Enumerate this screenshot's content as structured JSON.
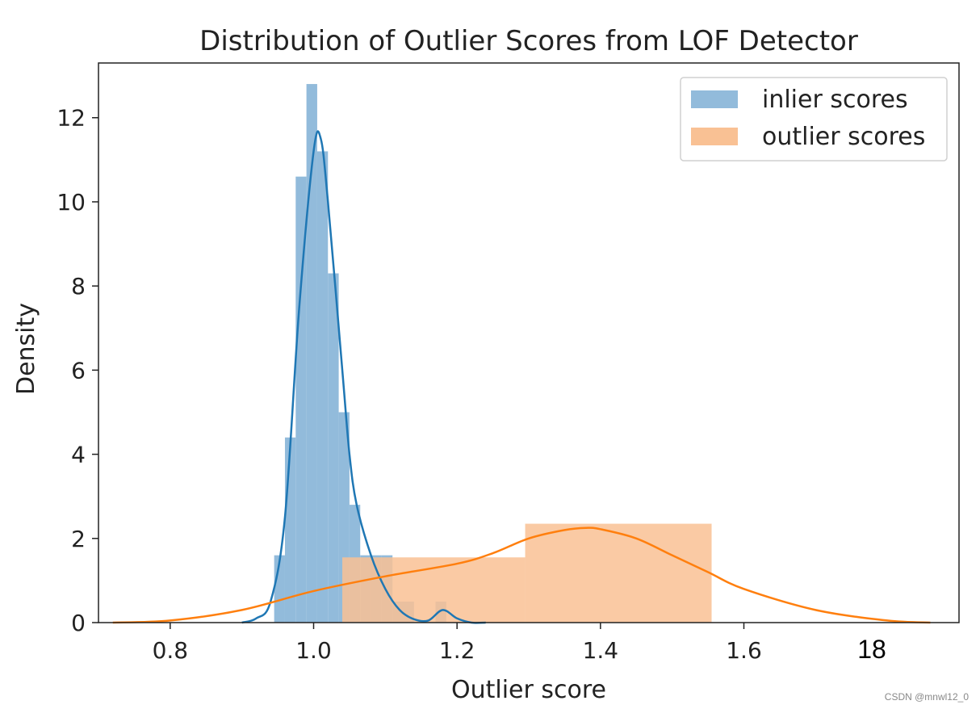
{
  "chart_data": {
    "type": "histogram+kde",
    "title": "Distribution of Outlier Scores from LOF Detector",
    "xlabel": "Outlier score",
    "ylabel": "Density",
    "xlim": [
      0.7,
      1.9
    ],
    "ylim": [
      0,
      13.3
    ],
    "xticks": [
      0.8,
      1.0,
      1.2,
      1.4,
      1.6
    ],
    "xtick_labels": [
      "0.8",
      "1.0",
      "1.2",
      "1.4",
      "1.6"
    ],
    "yticks": [
      0,
      2,
      4,
      6,
      8,
      10,
      12
    ],
    "ytick_labels": [
      "0",
      "2",
      "4",
      "6",
      "8",
      "10",
      "12"
    ],
    "extra_annotation": "18",
    "legend": {
      "position": "top-right",
      "entries": [
        "inlier scores",
        "outlier scores"
      ]
    },
    "series": [
      {
        "name": "inlier scores",
        "color": "#1f77b4",
        "bar_color": "#92bbdb",
        "bins": [
          {
            "x0": 0.945,
            "x1": 0.96,
            "density": 1.6
          },
          {
            "x0": 0.96,
            "x1": 0.975,
            "density": 4.4
          },
          {
            "x0": 0.975,
            "x1": 0.99,
            "density": 10.6
          },
          {
            "x0": 0.99,
            "x1": 1.005,
            "density": 12.8
          },
          {
            "x0": 1.005,
            "x1": 1.02,
            "density": 11.2
          },
          {
            "x0": 1.02,
            "x1": 1.035,
            "density": 8.3
          },
          {
            "x0": 1.035,
            "x1": 1.05,
            "density": 5.0
          },
          {
            "x0": 1.05,
            "x1": 1.065,
            "density": 2.8
          },
          {
            "x0": 1.065,
            "x1": 1.08,
            "density": 1.6
          },
          {
            "x0": 1.08,
            "x1": 1.095,
            "density": 1.6
          },
          {
            "x0": 1.095,
            "x1": 1.11,
            "density": 1.6
          },
          {
            "x0": 1.11,
            "x1": 1.125,
            "density": 0.5
          },
          {
            "x0": 1.125,
            "x1": 1.14,
            "density": 0.5
          },
          {
            "x0": 1.17,
            "x1": 1.185,
            "density": 0.5
          }
        ],
        "kde": [
          [
            0.9,
            0.0
          ],
          [
            0.92,
            0.1
          ],
          [
            0.94,
            0.5
          ],
          [
            0.96,
            2.5
          ],
          [
            0.98,
            7.5
          ],
          [
            1.0,
            11.2
          ],
          [
            1.01,
            11.5
          ],
          [
            1.02,
            10.0
          ],
          [
            1.04,
            6.0
          ],
          [
            1.05,
            4.0
          ],
          [
            1.06,
            2.8
          ],
          [
            1.08,
            1.6
          ],
          [
            1.1,
            0.8
          ],
          [
            1.12,
            0.3
          ],
          [
            1.14,
            0.08
          ],
          [
            1.16,
            0.05
          ],
          [
            1.18,
            0.3
          ],
          [
            1.2,
            0.1
          ],
          [
            1.22,
            0.0
          ],
          [
            1.24,
            0.0
          ]
        ]
      },
      {
        "name": "outlier scores",
        "color": "#ff7f0e",
        "bar_color": "#f9c194",
        "bins": [
          {
            "x0": 1.04,
            "x1": 1.295,
            "density": 1.55
          },
          {
            "x0": 1.295,
            "x1": 1.555,
            "density": 2.35
          }
        ],
        "kde": [
          [
            0.72,
            0.0
          ],
          [
            0.8,
            0.05
          ],
          [
            0.9,
            0.3
          ],
          [
            1.0,
            0.75
          ],
          [
            1.1,
            1.1
          ],
          [
            1.2,
            1.4
          ],
          [
            1.25,
            1.65
          ],
          [
            1.3,
            2.0
          ],
          [
            1.35,
            2.2
          ],
          [
            1.38,
            2.25
          ],
          [
            1.4,
            2.22
          ],
          [
            1.45,
            2.0
          ],
          [
            1.5,
            1.6
          ],
          [
            1.55,
            1.2
          ],
          [
            1.6,
            0.8
          ],
          [
            1.7,
            0.3
          ],
          [
            1.8,
            0.05
          ],
          [
            1.86,
            0.0
          ]
        ]
      }
    ]
  },
  "watermark": "CSDN @mnwl12_0"
}
